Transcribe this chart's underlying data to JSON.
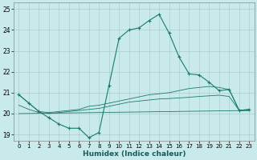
{
  "xlabel": "Humidex (Indice chaleur)",
  "background_color": "#c8eaea",
  "grid_color": "#b0cccc",
  "line_color": "#1a7a6e",
  "xlim": [
    -0.5,
    23.5
  ],
  "ylim": [
    18.7,
    25.3
  ],
  "yticks": [
    19,
    20,
    21,
    22,
    23,
    24,
    25
  ],
  "xticks": [
    0,
    1,
    2,
    3,
    4,
    5,
    6,
    7,
    8,
    9,
    10,
    11,
    12,
    13,
    14,
    15,
    16,
    17,
    18,
    19,
    20,
    21,
    22,
    23
  ],
  "series1_x": [
    0,
    1,
    2,
    3,
    4,
    5,
    6,
    7,
    8,
    9,
    10,
    11,
    12,
    13,
    14,
    15,
    16,
    17,
    18,
    19,
    20,
    21,
    22,
    23
  ],
  "series1_y": [
    20.9,
    20.5,
    20.1,
    19.8,
    19.5,
    19.3,
    19.3,
    18.85,
    19.1,
    21.35,
    23.6,
    24.0,
    24.1,
    24.45,
    24.75,
    23.85,
    22.7,
    21.9,
    21.85,
    21.5,
    21.1,
    21.15,
    20.15,
    20.2
  ],
  "series2_x": [
    0,
    1,
    2,
    3,
    4,
    5,
    6,
    7,
    8,
    9,
    10,
    11,
    12,
    13,
    14,
    15,
    16,
    17,
    18,
    19,
    20,
    21,
    22,
    23
  ],
  "series2_y": [
    20.9,
    20.5,
    20.1,
    20.05,
    20.1,
    20.15,
    20.2,
    20.35,
    20.4,
    20.5,
    20.6,
    20.7,
    20.8,
    20.9,
    20.95,
    21.0,
    21.1,
    21.2,
    21.25,
    21.3,
    21.25,
    21.15,
    20.15,
    20.2
  ],
  "series3_x": [
    0,
    1,
    2,
    3,
    4,
    5,
    6,
    7,
    8,
    9,
    10,
    11,
    12,
    13,
    14,
    15,
    16,
    17,
    18,
    19,
    20,
    21,
    22,
    23
  ],
  "series3_y": [
    20.4,
    20.2,
    20.05,
    20.0,
    20.05,
    20.1,
    20.15,
    20.2,
    20.25,
    20.35,
    20.45,
    20.55,
    20.6,
    20.65,
    20.7,
    20.72,
    20.75,
    20.78,
    20.82,
    20.85,
    20.88,
    20.82,
    20.15,
    20.15
  ],
  "series4_x": [
    0,
    23
  ],
  "series4_y": [
    20.0,
    20.15
  ]
}
